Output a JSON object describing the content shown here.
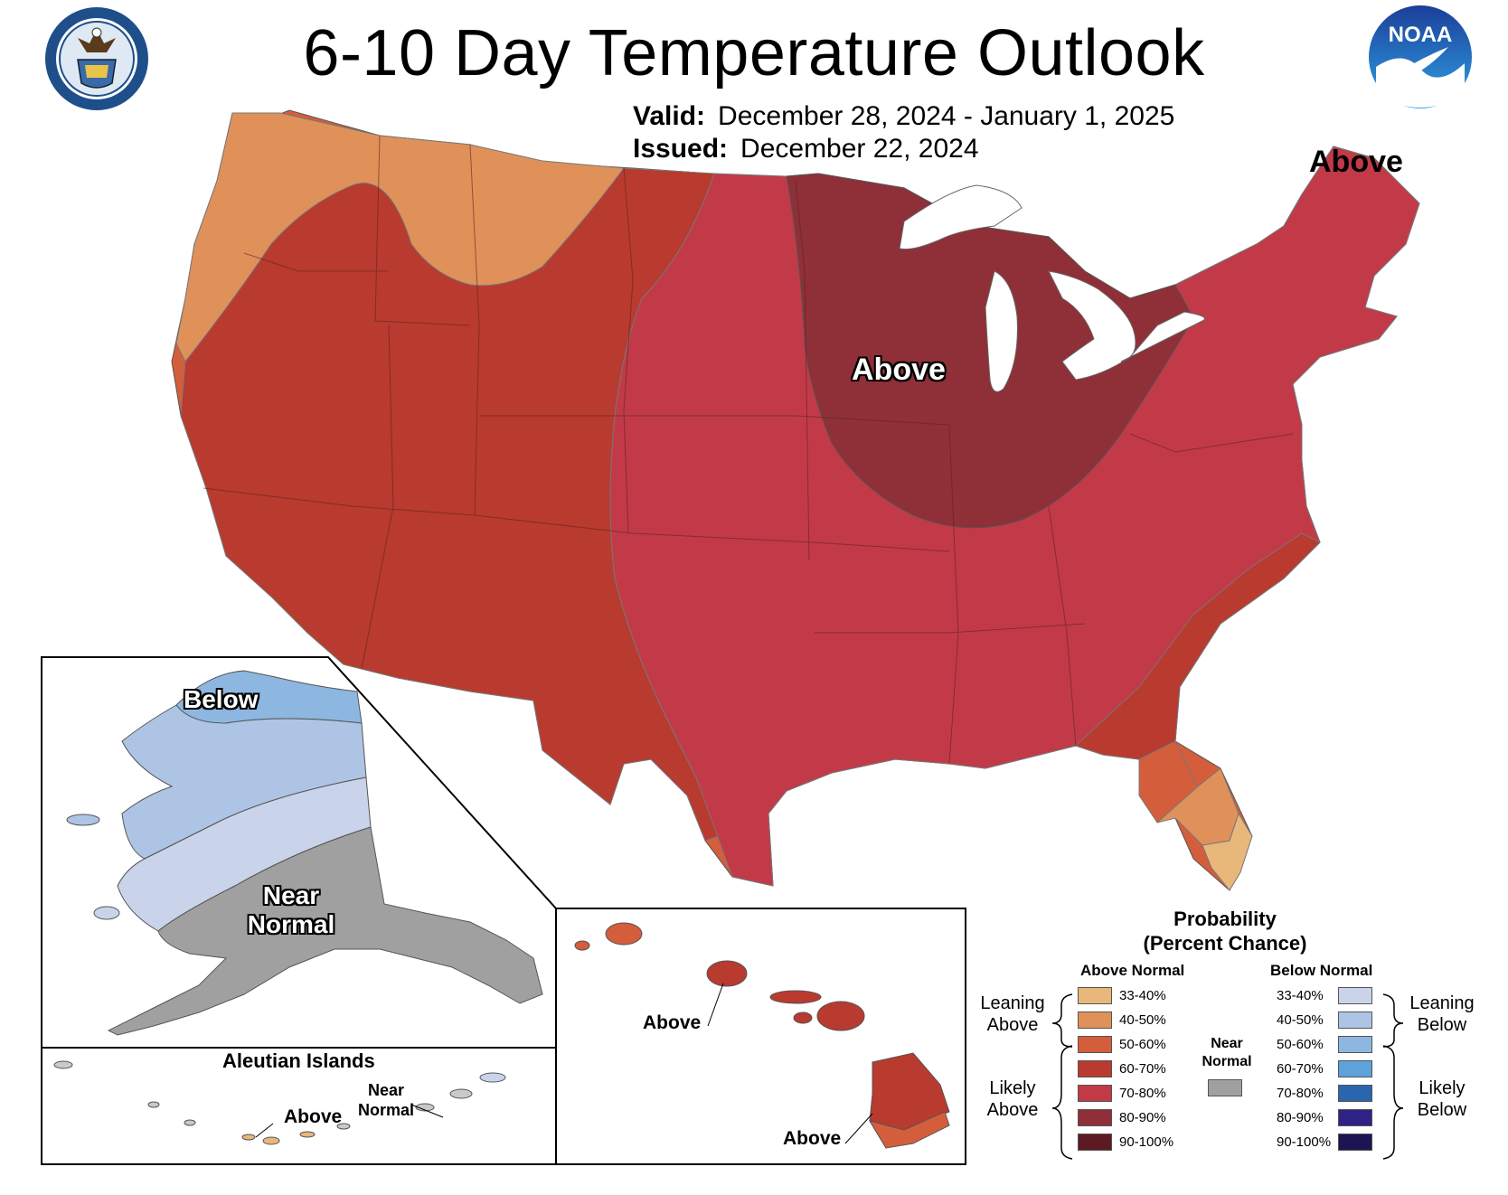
{
  "title": "6-10 Day Temperature Outlook",
  "valid_label": "Valid:",
  "valid_value": "December 28, 2024 - January 1, 2025",
  "issued_label": "Issued:",
  "issued_value": "December 22, 2024",
  "logos": {
    "left": "department-of-commerce-seal",
    "right": "noaa-logo",
    "noaa_text": "NOAA"
  },
  "map_labels": {
    "conus_midwest": "Above",
    "conus_northeast": "Above",
    "alaska_north": "Below",
    "alaska_south": "Near Normal",
    "aleutian_title": "Aleutian Islands",
    "aleutian_above": "Above",
    "aleutian_near": "Near Normal",
    "hawaii_upper": "Above",
    "hawaii_lower": "Above"
  },
  "legend": {
    "title": "Probability (Percent Chance)",
    "above_header": "Above Normal",
    "below_header": "Below Normal",
    "near_label": "Near Normal",
    "leaning_above": "Leaning Above",
    "likely_above": "Likely Above",
    "leaning_below": "Leaning Below",
    "likely_below": "Likely Below",
    "ranges": [
      "33-40%",
      "40-50%",
      "50-60%",
      "60-70%",
      "70-80%",
      "80-90%",
      "90-100%"
    ],
    "above_colors": [
      "#e8b77a",
      "#e0915a",
      "#d45e3c",
      "#b93a2e",
      "#c23a48",
      "#8f2f38",
      "#5e1a22"
    ],
    "below_colors": [
      "#c9d3ea",
      "#aec4e4",
      "#8db7e1",
      "#5ea2db",
      "#2a66ad",
      "#2f2287",
      "#1b1554"
    ],
    "near_color": "#a0a0a0"
  }
}
